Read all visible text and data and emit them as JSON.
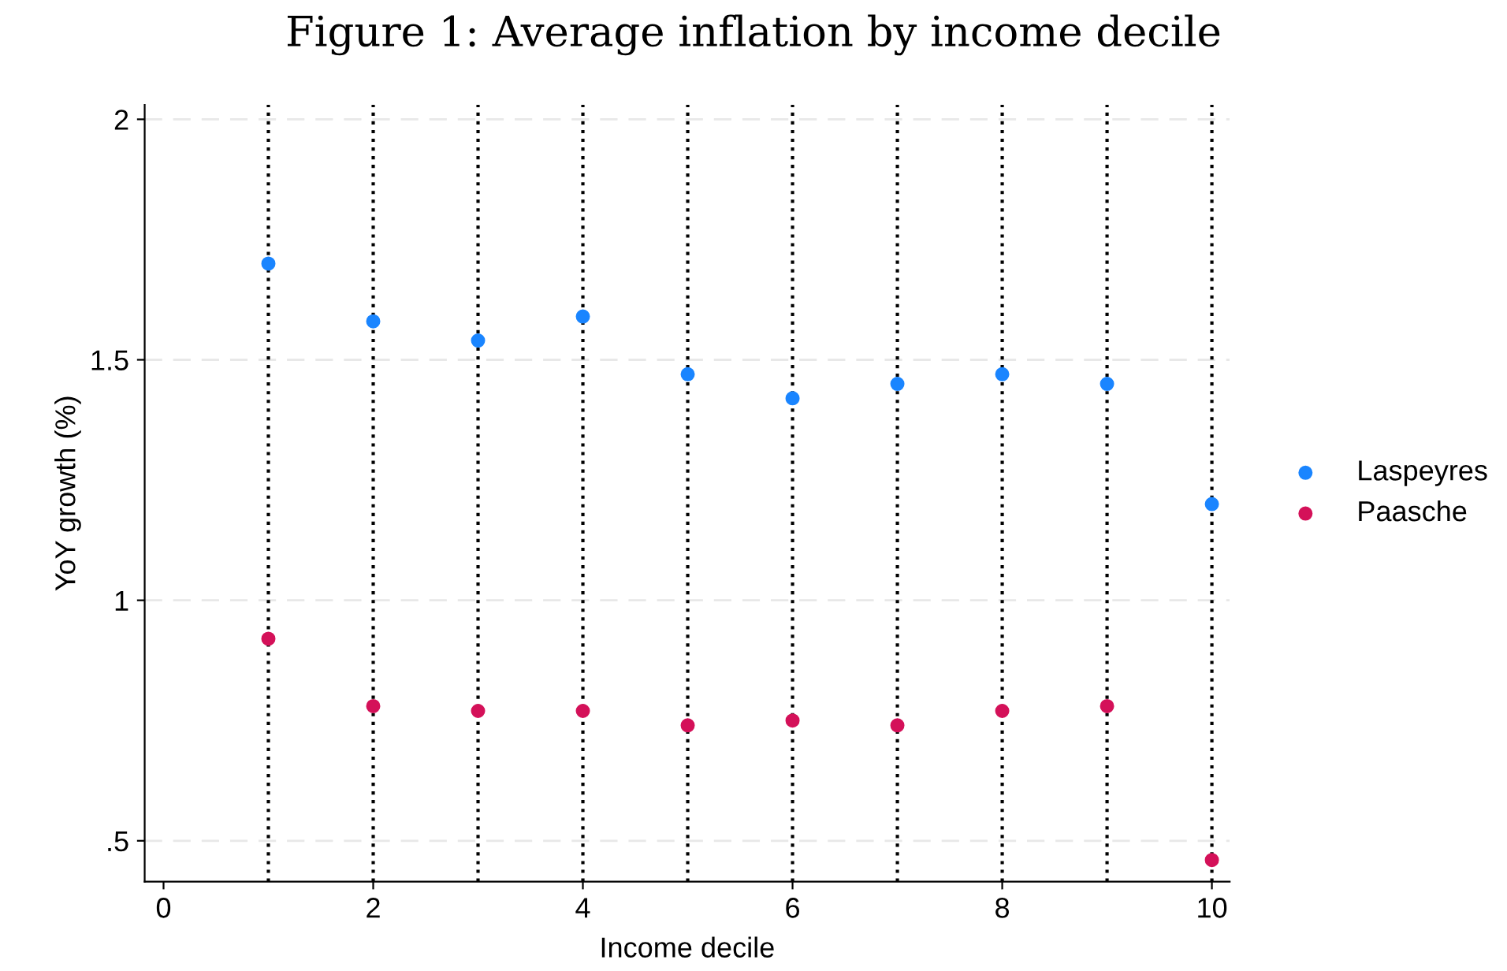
{
  "chart_data": {
    "type": "scatter",
    "title": "Figure 1: Average inflation by income decile",
    "xlabel": "Income decile",
    "ylabel": "YoY growth (%)",
    "x": [
      1,
      2,
      3,
      4,
      5,
      6,
      7,
      8,
      9,
      10
    ],
    "series": [
      {
        "name": "Laspeyres",
        "color": "#1a85ff",
        "values": [
          1.7,
          1.58,
          1.54,
          1.59,
          1.47,
          1.42,
          1.45,
          1.47,
          1.45,
          1.2
        ]
      },
      {
        "name": "Paasche",
        "color": "#d41159",
        "values": [
          0.92,
          0.78,
          0.77,
          0.77,
          0.74,
          0.75,
          0.74,
          0.77,
          0.78,
          0.46
        ]
      }
    ],
    "xlim": [
      -0.18,
      10.17
    ],
    "ylim": [
      0.415,
      2.03
    ],
    "xticks": [
      0,
      2,
      4,
      6,
      8,
      10
    ],
    "yticks": [
      {
        "value": 0.5,
        "label": ".5"
      },
      1,
      1.5,
      2
    ],
    "ref_lines": [
      {
        "axis": "x",
        "value": 1,
        "color": "#000000",
        "line_style": "dotted"
      },
      {
        "axis": "x",
        "value": 2,
        "color": "#000000",
        "line_style": "dotted"
      },
      {
        "axis": "x",
        "value": 3,
        "color": "#000000",
        "line_style": "dotted"
      },
      {
        "axis": "x",
        "value": 4,
        "color": "#000000",
        "line_style": "dotted"
      },
      {
        "axis": "x",
        "value": 5,
        "color": "#000000",
        "line_style": "dotted"
      },
      {
        "axis": "x",
        "value": 6,
        "color": "#000000",
        "line_style": "dotted"
      },
      {
        "axis": "x",
        "value": 7,
        "color": "#000000",
        "line_style": "dotted"
      },
      {
        "axis": "x",
        "value": 8,
        "color": "#000000",
        "line_style": "dotted"
      },
      {
        "axis": "x",
        "value": 9,
        "color": "#000000",
        "line_style": "dotted"
      },
      {
        "axis": "x",
        "value": 10,
        "color": "#000000",
        "line_style": "dotted"
      }
    ],
    "grid": "y",
    "legend": "right",
    "marker": "circle"
  }
}
